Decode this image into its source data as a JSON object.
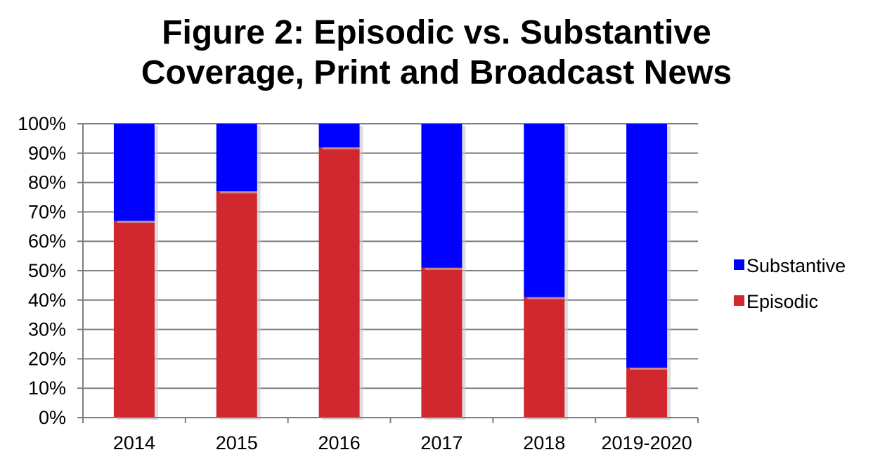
{
  "chart_data": {
    "type": "bar",
    "stacked": true,
    "percent_stacked": true,
    "title_lines": [
      "Figure 2: Episodic vs. Substantive",
      "Coverage, Print and Broadcast News"
    ],
    "categories": [
      "2014",
      "2015",
      "2016",
      "2017",
      "2018",
      "2019-2020"
    ],
    "series": [
      {
        "name": "Episodic",
        "color": "#d0282e",
        "values": [
          67,
          77,
          92,
          51,
          41,
          17
        ]
      },
      {
        "name": "Substantive",
        "color": "#0000ff",
        "values": [
          33,
          23,
          8,
          49,
          59,
          83
        ]
      }
    ],
    "ylim": [
      0,
      100
    ],
    "y_ticks": [
      "0%",
      "10%",
      "20%",
      "30%",
      "40%",
      "50%",
      "60%",
      "70%",
      "80%",
      "90%",
      "100%"
    ],
    "xlabel": "",
    "ylabel": "",
    "grid": true,
    "legend": {
      "position": "right",
      "order": [
        "Substantive",
        "Episodic"
      ]
    }
  }
}
